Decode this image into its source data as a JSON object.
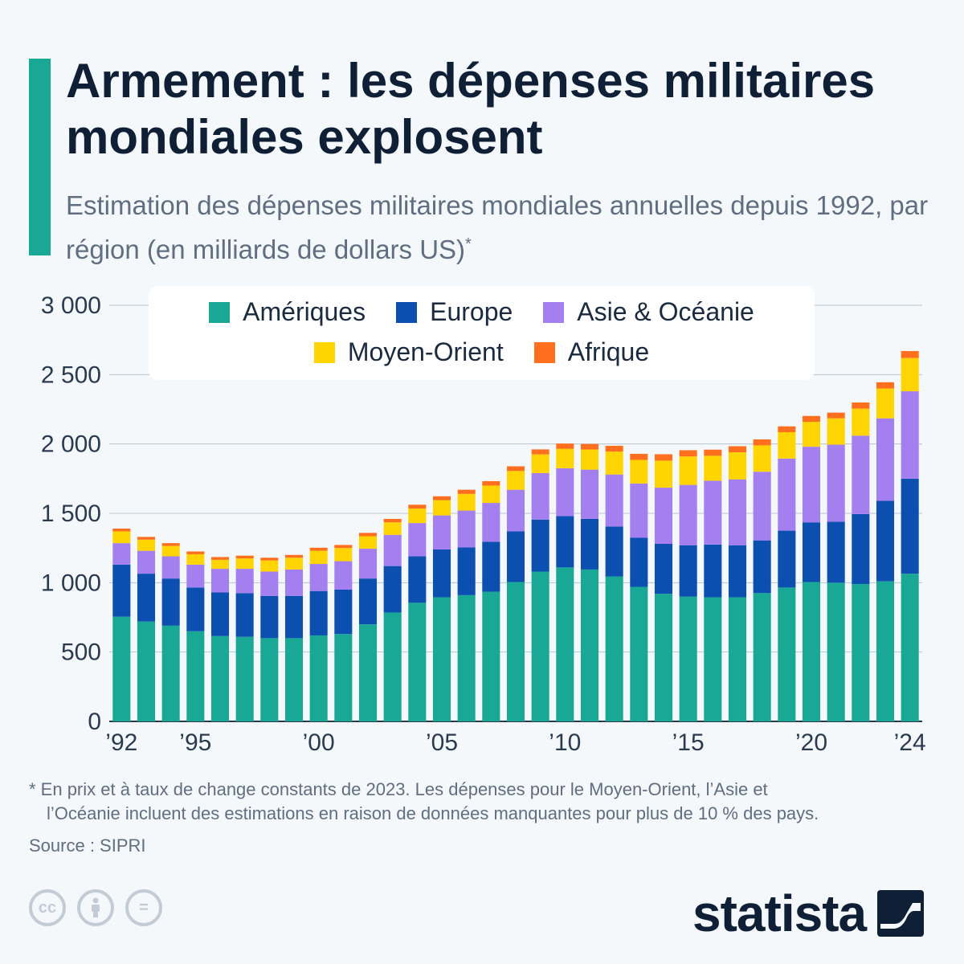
{
  "header": {
    "title": "Armement : les dépenses militaires mondiales explosent",
    "subtitle": "Estimation des dépenses militaires mondiales annuelles depuis 1992, par région (en milliards de dollars US)",
    "subtitle_marker": "*",
    "accent_color": "#1aa896"
  },
  "chart_data": {
    "type": "bar",
    "stacked": true,
    "x": [
      "1992",
      "1993",
      "1994",
      "1995",
      "1996",
      "1997",
      "1998",
      "1999",
      "2000",
      "2001",
      "2002",
      "2003",
      "2004",
      "2005",
      "2006",
      "2007",
      "2008",
      "2009",
      "2010",
      "2011",
      "2012",
      "2013",
      "2014",
      "2015",
      "2016",
      "2017",
      "2018",
      "2019",
      "2020",
      "2021",
      "2022",
      "2023",
      "2024"
    ],
    "x_tick_labels": [
      "’92",
      "’95",
      "’00",
      "’05",
      "’10",
      "’15",
      "’20",
      "’24"
    ],
    "x_tick_years": [
      "1992",
      "1995",
      "2000",
      "2005",
      "2010",
      "2015",
      "2020",
      "2024"
    ],
    "y_ticks": [
      "0",
      "500",
      "1 000",
      "1 500",
      "2 000",
      "2 500",
      "3 000"
    ],
    "y_tick_values": [
      0,
      500,
      1000,
      1500,
      2000,
      2500,
      3000
    ],
    "ylim": [
      0,
      3000
    ],
    "grid": true,
    "legend_position": "top",
    "series": [
      {
        "name": "Amériques",
        "color": "#1aa896",
        "values": [
          755,
          720,
          690,
          650,
          615,
          610,
          600,
          600,
          620,
          630,
          700,
          785,
          855,
          895,
          910,
          935,
          1005,
          1080,
          1110,
          1095,
          1045,
          970,
          920,
          900,
          895,
          895,
          925,
          965,
          1005,
          1000,
          990,
          1010,
          1065
        ]
      },
      {
        "name": "Europe",
        "color": "#0b4fb0",
        "values": [
          375,
          345,
          340,
          315,
          315,
          315,
          305,
          305,
          320,
          320,
          330,
          335,
          335,
          345,
          345,
          360,
          365,
          375,
          370,
          365,
          360,
          355,
          360,
          370,
          380,
          375,
          380,
          410,
          430,
          440,
          505,
          580,
          685
        ]
      },
      {
        "name": "Asie & Océanie",
        "color": "#a47ff0",
        "values": [
          155,
          165,
          160,
          165,
          170,
          175,
          175,
          190,
          195,
          205,
          215,
          225,
          240,
          245,
          265,
          280,
          300,
          335,
          345,
          355,
          375,
          390,
          405,
          435,
          460,
          475,
          495,
          520,
          545,
          555,
          565,
          595,
          630
        ]
      },
      {
        "name": "Moyen-Orient",
        "color": "#ffd400",
        "values": [
          85,
          80,
          75,
          75,
          65,
          75,
          80,
          85,
          95,
          95,
          90,
          90,
          105,
          110,
          120,
          125,
          135,
          135,
          140,
          145,
          165,
          170,
          195,
          205,
          180,
          195,
          190,
          190,
          180,
          190,
          195,
          215,
          240
        ]
      },
      {
        "name": "Afrique",
        "color": "#ff6f1e",
        "values": [
          20,
          20,
          20,
          20,
          20,
          20,
          20,
          20,
          22,
          22,
          24,
          25,
          27,
          28,
          30,
          32,
          34,
          36,
          38,
          40,
          42,
          44,
          46,
          45,
          44,
          44,
          43,
          42,
          42,
          41,
          44,
          45,
          50
        ]
      }
    ]
  },
  "footnote": {
    "line1": "* En prix et à taux de change constants de 2023. Les dépenses pour le Moyen-Orient, l’Asie et",
    "line2": "l’Océanie incluent des estimations en raison de données manquantes pour plus de 10 % des pays."
  },
  "source": "Source : SIPRI",
  "license_icons": [
    "cc-icon",
    "attribution-icon",
    "no-derivatives-icon"
  ],
  "license_labels": {
    "cc": "cc",
    "equals": "="
  },
  "logo": {
    "text": "statista"
  }
}
